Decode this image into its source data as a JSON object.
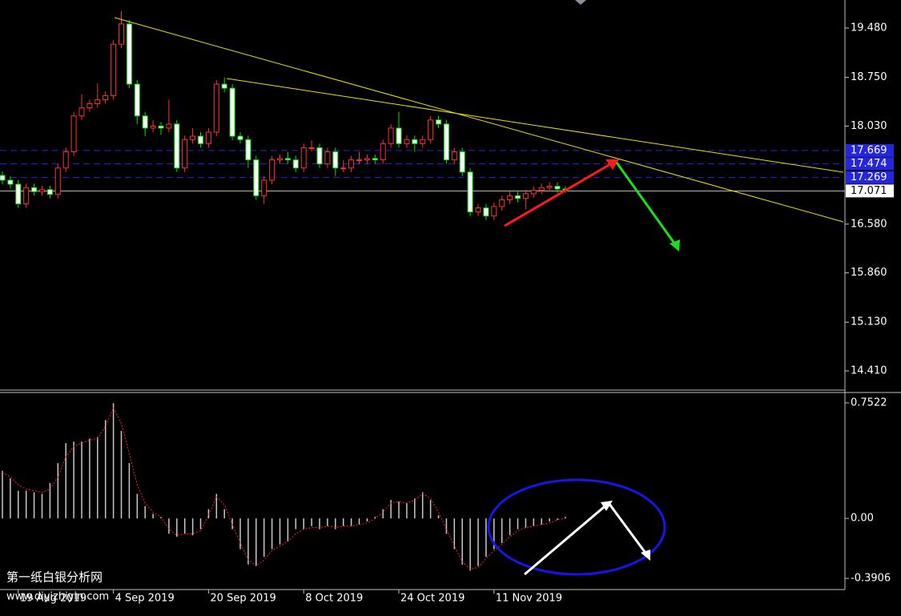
{
  "chart_data": [
    {
      "type": "candlestick",
      "categories": [
        null,
        null,
        "19 Aug 2019",
        null,
        null,
        null,
        null,
        null,
        null,
        null,
        null,
        null,
        null,
        null,
        "4 Sep 2019",
        null,
        null,
        null,
        null,
        null,
        null,
        null,
        null,
        null,
        null,
        null,
        "20 Sep 2019",
        null,
        null,
        null,
        null,
        null,
        null,
        null,
        null,
        null,
        null,
        null,
        "8 Oct 2019",
        null,
        null,
        null,
        null,
        null,
        null,
        null,
        null,
        null,
        null,
        null,
        "24 Oct 2019",
        null,
        null,
        null,
        null,
        null,
        null,
        null,
        null,
        null,
        null,
        null,
        "11 Nov 2019",
        null,
        null,
        null,
        null,
        null,
        null,
        null,
        null,
        null
      ],
      "open": [
        17.3,
        17.23,
        17.17,
        16.88,
        17.12,
        17.06,
        17.09,
        17.02,
        17.41,
        17.65,
        18.18,
        18.3,
        18.36,
        18.42,
        18.48,
        19.24,
        19.54,
        18.65,
        18.18,
        18.0,
        18.03,
        18.0,
        18.06,
        17.41,
        17.83,
        17.88,
        17.77,
        17.94,
        18.65,
        18.59,
        17.88,
        17.83,
        17.53,
        17.0,
        17.23,
        17.53,
        17.55,
        17.53,
        17.41,
        17.71,
        17.71,
        17.47,
        17.65,
        17.41,
        17.41,
        17.53,
        17.53,
        17.55,
        17.53,
        17.77,
        18.0,
        17.77,
        17.83,
        17.77,
        17.83,
        18.12,
        18.06,
        17.53,
        17.65,
        17.35,
        16.76,
        16.82,
        16.7,
        16.84,
        16.94,
        17.0,
        16.96,
        17.03,
        17.08,
        17.12,
        17.14,
        17.1
      ],
      "high": [
        17.36,
        17.29,
        17.23,
        17.18,
        17.18,
        17.15,
        17.15,
        17.47,
        17.71,
        18.24,
        18.5,
        18.42,
        18.66,
        18.54,
        19.3,
        19.73,
        19.6,
        18.71,
        18.24,
        18.12,
        18.09,
        18.42,
        18.12,
        17.89,
        18.0,
        17.94,
        18.0,
        18.71,
        18.75,
        18.65,
        17.94,
        17.89,
        17.59,
        17.29,
        17.59,
        17.61,
        17.65,
        17.59,
        17.77,
        17.82,
        17.77,
        17.71,
        17.71,
        17.53,
        17.59,
        17.65,
        17.61,
        17.61,
        17.83,
        18.06,
        18.24,
        17.89,
        17.89,
        17.89,
        18.18,
        18.18,
        18.12,
        17.71,
        17.71,
        17.41,
        16.88,
        16.88,
        16.9,
        17.0,
        17.06,
        17.06,
        17.09,
        17.14,
        17.18,
        17.2,
        17.2,
        17.14
      ],
      "low": [
        17.17,
        17.11,
        16.82,
        16.82,
        17.0,
        17.0,
        16.96,
        16.96,
        17.35,
        17.59,
        18.12,
        18.24,
        18.3,
        18.36,
        18.42,
        19.18,
        18.59,
        18.06,
        17.88,
        17.94,
        17.9,
        17.94,
        17.35,
        17.35,
        17.77,
        17.71,
        17.71,
        17.88,
        18.53,
        17.82,
        17.77,
        17.41,
        16.94,
        16.88,
        17.17,
        17.47,
        17.47,
        17.35,
        17.35,
        17.65,
        17.41,
        17.41,
        17.29,
        17.35,
        17.35,
        17.47,
        17.47,
        17.47,
        17.47,
        17.71,
        17.71,
        17.71,
        17.65,
        17.71,
        17.77,
        18.0,
        17.47,
        17.47,
        17.29,
        16.7,
        16.7,
        16.64,
        16.64,
        16.78,
        16.88,
        16.9,
        16.8,
        16.97,
        17.02,
        17.06,
        17.04,
        17.04
      ],
      "close": [
        17.23,
        17.17,
        16.88,
        17.12,
        17.06,
        17.09,
        17.02,
        17.41,
        17.65,
        18.18,
        18.3,
        18.36,
        18.42,
        18.48,
        19.24,
        19.54,
        18.65,
        18.18,
        18.0,
        18.03,
        18.0,
        18.06,
        17.41,
        17.83,
        17.88,
        17.77,
        17.94,
        18.65,
        18.59,
        17.88,
        17.83,
        17.53,
        17.0,
        17.23,
        17.53,
        17.55,
        17.53,
        17.41,
        17.71,
        17.71,
        17.47,
        17.65,
        17.41,
        17.41,
        17.53,
        17.53,
        17.55,
        17.53,
        17.77,
        18.0,
        17.77,
        17.83,
        17.77,
        17.83,
        18.12,
        18.06,
        17.53,
        17.65,
        17.35,
        16.76,
        16.82,
        16.7,
        16.84,
        16.94,
        17.0,
        16.96,
        17.03,
        17.08,
        17.12,
        17.14,
        17.1,
        17.071
      ],
      "up_color": "#ff3030",
      "down_color": "#ffffff",
      "down_edge_color": "#00e000",
      "ylim": [
        14.138,
        19.894
      ],
      "yticks": [
        {
          "value": 19.48,
          "label": "19.480"
        },
        {
          "value": 18.75,
          "label": "18.750"
        },
        {
          "value": 18.03,
          "label": "18.030"
        },
        {
          "value": 16.58,
          "label": "16.580"
        },
        {
          "value": 15.86,
          "label": "15.860"
        },
        {
          "value": 15.13,
          "label": "15.130"
        },
        {
          "value": 14.41,
          "label": "14.410"
        }
      ],
      "price_lines": {
        "values": [
          17.669,
          17.474,
          17.269
        ],
        "color": "#2626d9"
      },
      "last_price": 17.071
    },
    {
      "type": "macd",
      "values": [
        0.31,
        0.26,
        0.18,
        0.18,
        0.17,
        0.16,
        0.23,
        0.36,
        0.49,
        0.5,
        0.5,
        0.52,
        0.53,
        0.64,
        0.75,
        0.57,
        0.36,
        0.16,
        0.08,
        0.03,
        0.01,
        -0.1,
        -0.12,
        -0.1,
        -0.11,
        -0.07,
        0.06,
        0.16,
        0.06,
        -0.07,
        -0.2,
        -0.3,
        -0.31,
        -0.25,
        -0.2,
        -0.17,
        -0.15,
        -0.07,
        -0.07,
        -0.05,
        -0.07,
        -0.05,
        -0.07,
        -0.05,
        -0.05,
        -0.04,
        -0.02,
        0.01,
        0.06,
        0.12,
        0.11,
        0.1,
        0.13,
        0.17,
        0.12,
        0.02,
        -0.1,
        -0.2,
        -0.3,
        -0.34,
        -0.31,
        -0.25,
        -0.2,
        -0.16,
        -0.11,
        -0.07,
        -0.06,
        -0.05,
        -0.04,
        -0.02,
        -0.01,
        0.01
      ],
      "color": "#c8c8c8",
      "signal": {
        "values": [
          0.3,
          0.27,
          0.22,
          0.19,
          0.18,
          0.17,
          0.19,
          0.27,
          0.4,
          0.47,
          0.49,
          0.51,
          0.52,
          0.6,
          0.72,
          0.62,
          0.42,
          0.22,
          0.1,
          0.04,
          0.01,
          -0.07,
          -0.11,
          -0.1,
          -0.1,
          -0.08,
          0.02,
          0.14,
          0.09,
          -0.04,
          -0.16,
          -0.27,
          -0.31,
          -0.27,
          -0.21,
          -0.18,
          -0.15,
          -0.1,
          -0.07,
          -0.06,
          -0.06,
          -0.05,
          -0.06,
          -0.05,
          -0.05,
          -0.04,
          -0.03,
          0.0,
          0.04,
          0.1,
          0.11,
          0.1,
          0.12,
          0.16,
          0.13,
          0.04,
          -0.07,
          -0.18,
          -0.28,
          -0.33,
          -0.32,
          -0.26,
          -0.21,
          -0.17,
          -0.12,
          -0.08,
          -0.06,
          -0.05,
          -0.04,
          -0.03,
          -0.01,
          0.0
        ],
        "color": "#ff2020"
      },
      "ylim": [
        -0.458,
        0.809
      ],
      "yticks": [
        0.7522,
        {
          "value": 0,
          "label": "0.00"
        },
        -0.3906
      ]
    }
  ],
  "watermark": [
    "第一纸白银分析网",
    "www.diyizhiyin.com"
  ]
}
